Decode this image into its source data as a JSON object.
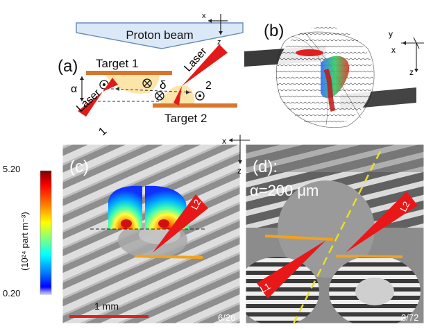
{
  "panel_a": {
    "label": "(a)",
    "beam_label": "Proton beam",
    "axis_x": "x",
    "axis_z": "z",
    "target1": "Target 1",
    "target2": "Target 2",
    "laser1_text": "Laser",
    "laser1_number": "1",
    "laser2_text": "Laser",
    "laser2_number": "2",
    "alpha": "α",
    "delta": "δ"
  },
  "panel_b": {
    "label": "(b)",
    "axis_y": "y",
    "axis_x": "x",
    "axis_z": "z"
  },
  "colorbar": {
    "max": "5.20",
    "min": "0.20",
    "unit_label": "(10²⁴ part m⁻³)",
    "colors": [
      "#7f0000",
      "#ff0000",
      "#ff8000",
      "#ffff00",
      "#80ff80",
      "#00ffff",
      "#0080ff",
      "#0000ff",
      "#00008f"
    ]
  },
  "panel_c": {
    "label": "(c)",
    "axis_x": "x",
    "axis_z": "z",
    "laser_label": "L2",
    "scale_bar": "1 mm",
    "frame": "6/26"
  },
  "panel_d": {
    "label": "(d):",
    "alpha_text": "α=200 μm",
    "laser1_label": "L1",
    "laser2_label": "L2",
    "frame": "3/72"
  }
}
